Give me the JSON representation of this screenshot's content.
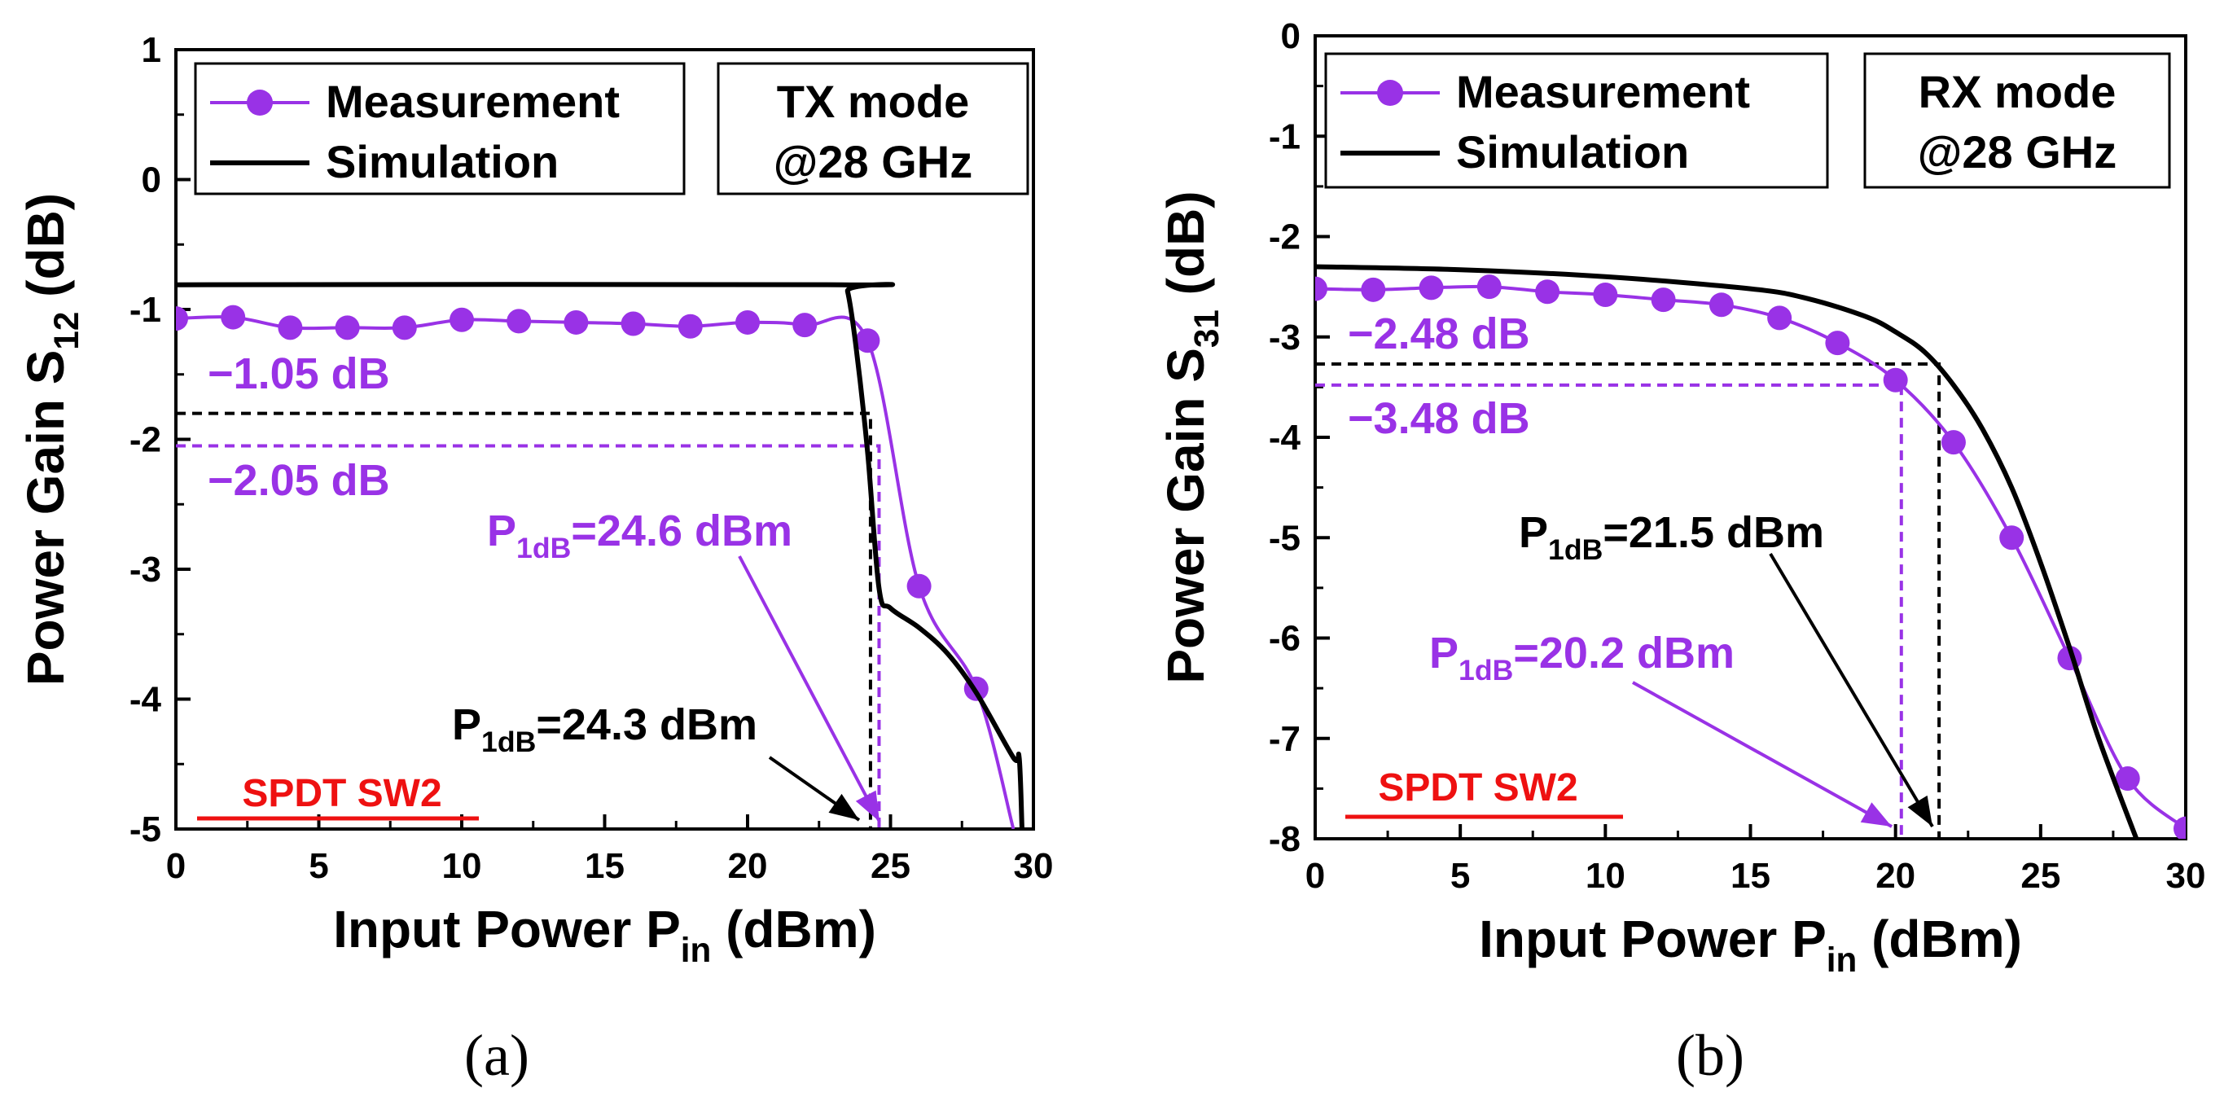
{
  "colors": {
    "measurement": "#9932e6",
    "simulation": "#000000",
    "label_red": "#ee1111",
    "axis": "#000000"
  },
  "legend": {
    "measurement": "Measurement",
    "simulation": "Simulation"
  },
  "chart_data": [
    {
      "type": "line",
      "panel_label": "(a)",
      "mode_label": [
        "TX mode",
        "@28 GHz"
      ],
      "xlabel": "Input Power P",
      "xlabel_sub": "in",
      "xlabel_unit": " (dBm)",
      "ylabel": "Power Gain S",
      "ylabel_sub": "12",
      "ylabel_unit": " (dB)",
      "xlim": [
        0,
        30
      ],
      "ylim": [
        -5,
        1
      ],
      "xticks": [
        0,
        5,
        10,
        15,
        20,
        25,
        30
      ],
      "yticks": [
        1,
        0,
        -1,
        -2,
        -3,
        -4,
        -5
      ],
      "series": [
        {
          "name": "Measurement",
          "x": [
            0,
            2,
            4,
            6,
            8,
            10,
            12,
            14,
            16,
            18,
            20,
            22,
            24.2,
            26,
            28,
            29.3
          ],
          "y": [
            -1.07,
            -1.06,
            -1.14,
            -1.14,
            -1.14,
            -1.08,
            -1.09,
            -1.1,
            -1.11,
            -1.13,
            -1.1,
            -1.12,
            -1.24,
            -3.13,
            -3.92,
            -5.0
          ],
          "markers": [
            true,
            true,
            true,
            true,
            true,
            true,
            true,
            true,
            true,
            true,
            true,
            true,
            true,
            true,
            true,
            false
          ]
        },
        {
          "name": "Simulation",
          "x": [
            0,
            23.3,
            23.5,
            23.8,
            24.2,
            24.6,
            25.0,
            26.0,
            27.0,
            28.0,
            29.3,
            29.5,
            29.6
          ],
          "y": [
            -0.81,
            -0.81,
            -0.86,
            -1.3,
            -2.1,
            -3.15,
            -3.3,
            -3.45,
            -3.65,
            -3.95,
            -4.45,
            -4.45,
            -5.0
          ]
        }
      ],
      "ref_lines": [
        {
          "value": -1.8,
          "color": "simulation",
          "x_end": 24.3
        },
        {
          "value": -2.05,
          "color": "measurement",
          "x_end": 24.6
        }
      ],
      "annotations": {
        "meas_gain": "−1.05 dB",
        "meas_drop": "−2.05 dB",
        "p1db_meas_main": "P",
        "p1db_meas_sub": "1dB",
        "p1db_meas_rest": "=24.6 dBm",
        "p1db_sim_main": "P",
        "p1db_sim_sub": "1dB",
        "p1db_sim_rest": "=24.3 dBm",
        "device_label": "SPDT SW2"
      }
    },
    {
      "type": "line",
      "panel_label": "(b)",
      "mode_label": [
        "RX mode",
        "@28 GHz"
      ],
      "xlabel": "Input Power P",
      "xlabel_sub": "in",
      "xlabel_unit": " (dBm)",
      "ylabel": "Power Gain S",
      "ylabel_sub": "31",
      "ylabel_unit": " (dB)",
      "xlim": [
        0,
        30
      ],
      "ylim": [
        -8,
        0
      ],
      "xticks": [
        0,
        5,
        10,
        15,
        20,
        25,
        30
      ],
      "yticks": [
        0,
        -1,
        -2,
        -3,
        -4,
        -5,
        -6,
        -7,
        -8
      ],
      "series": [
        {
          "name": "Measurement",
          "x": [
            0,
            2,
            4,
            6,
            8,
            10,
            12,
            14,
            16,
            18,
            20,
            22,
            24,
            26,
            28,
            30
          ],
          "y": [
            -2.52,
            -2.53,
            -2.51,
            -2.5,
            -2.55,
            -2.58,
            -2.63,
            -2.68,
            -2.81,
            -3.06,
            -3.43,
            -4.05,
            -5.0,
            -6.2,
            -7.4,
            -7.9
          ],
          "markers": [
            true,
            true,
            true,
            true,
            true,
            true,
            true,
            true,
            true,
            true,
            true,
            true,
            true,
            true,
            true,
            true
          ]
        },
        {
          "name": "Simulation",
          "x": [
            0,
            5,
            10,
            15,
            17,
            19,
            20,
            21,
            22,
            23,
            24,
            25,
            26,
            27,
            28.3
          ],
          "y": [
            -2.3,
            -2.33,
            -2.4,
            -2.52,
            -2.62,
            -2.8,
            -2.95,
            -3.15,
            -3.48,
            -3.92,
            -4.5,
            -5.25,
            -6.1,
            -7.0,
            -8.0
          ]
        }
      ],
      "ref_lines": [
        {
          "value": -3.27,
          "color": "simulation",
          "x_end": 21.5
        },
        {
          "value": -3.48,
          "color": "measurement",
          "x_end": 20.2
        }
      ],
      "annotations": {
        "meas_gain": "−2.48 dB",
        "meas_drop": "−3.48 dB",
        "p1db_sim_main": "P",
        "p1db_sim_sub": "1dB",
        "p1db_sim_rest": "=21.5 dBm",
        "p1db_meas_main": "P",
        "p1db_meas_sub": "1dB",
        "p1db_meas_rest": "=20.2 dBm",
        "device_label": "SPDT SW2"
      }
    }
  ]
}
